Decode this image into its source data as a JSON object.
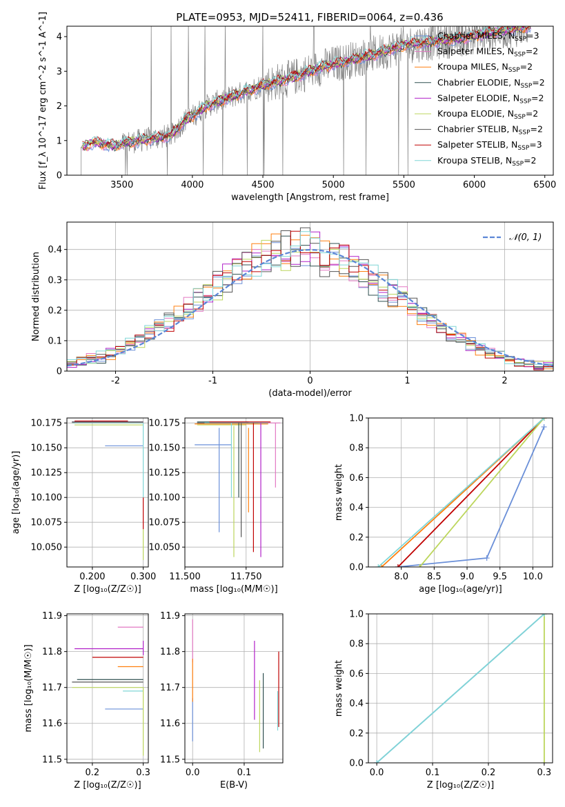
{
  "title": "PLATE=0953, MJD=52411, FIBERID=0064, z=0.436",
  "colors": {
    "Chabrier MILES": "#6a8fd8",
    "Salpeter MILES": "#e377c2",
    "Kroupa MILES": "#ff7f0e",
    "Chabrier ELODIE": "#2f4f4f",
    "Salpeter ELODIE": "#b01fc8",
    "Kroupa ELODIE": "#bcd65c",
    "Chabrier STELIB": "#555555",
    "Salpeter STELIB": "#c00000",
    "Kroupa STELIB": "#7fd6d6",
    "data": "#808080",
    "gaussian": "#5b86d6"
  },
  "chart_data": [
    {
      "id": "spectrum",
      "type": "line",
      "xlabel": "wavelength [Angstrom, rest frame]",
      "ylabel": "Flux [f_λ 10^-17 erg cm^-2 s^-1 A^-1]",
      "xlim": [
        3110,
        6560
      ],
      "ylim": [
        0,
        4.3
      ],
      "xticks": [
        3500,
        4000,
        4500,
        5000,
        5500,
        6000,
        6500
      ],
      "yticks": [
        0,
        1,
        2,
        3,
        4
      ],
      "grid": false,
      "legend_position": "top-right",
      "legend": [
        {
          "name": "Chabrier MILES",
          "sub": "N_SSP=3"
        },
        {
          "name": "Salpeter MILES",
          "sub": "N_SSP=2"
        },
        {
          "name": "Kroupa MILES",
          "sub": "N_SSP=2"
        },
        {
          "name": "Chabrier ELODIE",
          "sub": "N_SSP=2"
        },
        {
          "name": "Salpeter ELODIE",
          "sub": "N_SSP=2"
        },
        {
          "name": "Kroupa ELODIE",
          "sub": "N_SSP=2"
        },
        {
          "name": "Chabrier STELIB",
          "sub": "N_SSP=2"
        },
        {
          "name": "Salpeter STELIB",
          "sub": "N_SSP=3"
        },
        {
          "name": "Kroupa STELIB",
          "sub": "N_SSP=2"
        }
      ],
      "continuum_knots": [
        [
          3210,
          0.8
        ],
        [
          3300,
          0.95
        ],
        [
          3450,
          0.85
        ],
        [
          3550,
          0.95
        ],
        [
          3700,
          1.05
        ],
        [
          3850,
          1.15
        ],
        [
          3950,
          1.6
        ],
        [
          4000,
          1.7
        ],
        [
          4100,
          2.0
        ],
        [
          4300,
          2.3
        ],
        [
          4500,
          2.6
        ],
        [
          4700,
          2.8
        ],
        [
          4900,
          3.1
        ],
        [
          5100,
          3.3
        ],
        [
          5300,
          3.5
        ],
        [
          5500,
          3.75
        ],
        [
          5700,
          3.85
        ],
        [
          5900,
          3.95
        ],
        [
          6100,
          4.1
        ],
        [
          6400,
          4.3
        ]
      ]
    },
    {
      "id": "residual-histogram",
      "type": "bar",
      "xlabel": "(data-model)/error",
      "ylabel": "Normed distribution",
      "xlim": [
        -2.5,
        2.5
      ],
      "ylim": [
        0,
        0.49
      ],
      "xticks": [
        -2,
        -1,
        0,
        1,
        2
      ],
      "yticks": [
        0.0,
        0.1,
        0.2,
        0.3,
        0.4
      ],
      "grid": true,
      "legend_position": "top-right",
      "legend": [
        {
          "name": "𝒩(0, 1)"
        }
      ],
      "bin_width": 0.1,
      "bins_from": -2.5,
      "gaussian": {
        "mean": 0,
        "sigma": 1
      }
    },
    {
      "id": "age-vs-Z",
      "type": "scatter",
      "xlabel": "Z [log₁₀(Z/Z☉)]",
      "ylabel": "age  [log₁₀(age/yr)]",
      "xlim": [
        0.15,
        0.31
      ],
      "ylim": [
        10.03,
        10.18
      ],
      "xticks": [
        0.2,
        0.3
      ],
      "yticks": [
        10.05,
        10.075,
        10.1,
        10.125,
        10.15,
        10.175
      ],
      "grid": true,
      "hlines": [
        {
          "s": "Chabrier MILES",
          "y": 10.152,
          "x0": 0.225,
          "x1": 0.3
        },
        {
          "s": "Salpeter MILES",
          "y": 10.176,
          "x0": 0.16,
          "x1": 0.3
        },
        {
          "s": "Kroupa MILES",
          "y": 10.175,
          "x0": 0.16,
          "x1": 0.3
        },
        {
          "s": "Chabrier ELODIE",
          "y": 10.176,
          "x0": 0.16,
          "x1": 0.3
        },
        {
          "s": "Salpeter ELODIE",
          "y": 10.176,
          "x0": 0.16,
          "x1": 0.3
        },
        {
          "s": "Kroupa ELODIE",
          "y": 10.173,
          "x0": 0.165,
          "x1": 0.3
        },
        {
          "s": "Chabrier STELIB",
          "y": 10.176,
          "x0": 0.16,
          "x1": 0.3
        },
        {
          "s": "Salpeter STELIB",
          "y": 10.177,
          "x0": 0.165,
          "x1": 0.27
        },
        {
          "s": "Kroupa STELIB",
          "y": 10.175,
          "x0": 0.16,
          "x1": 0.3
        }
      ],
      "vlines": [
        {
          "s": "Salpeter STELIB",
          "x": 0.3,
          "y0": 10.068,
          "y1": 10.1
        },
        {
          "s": "Kroupa ELODIE",
          "x": 0.3,
          "y0": 10.037,
          "y1": 10.068
        },
        {
          "s": "Kroupa STELIB",
          "x": 0.3,
          "y0": 10.1,
          "y1": 10.175
        }
      ]
    },
    {
      "id": "age-vs-mass",
      "type": "scatter",
      "xlabel": "mass [log₁₀(M/M☉)]",
      "ylabel": "",
      "xlim": [
        11.5,
        11.9
      ],
      "ylim": [
        10.03,
        10.18
      ],
      "xticks": [
        11.5,
        11.75
      ],
      "yticks": [
        10.05,
        10.075,
        10.1,
        10.125,
        10.15,
        10.175
      ],
      "grid": true,
      "hlines": [
        {
          "s": "Chabrier MILES",
          "y": 10.153,
          "x0": 11.54,
          "x1": 11.69
        },
        {
          "s": "Salpeter MILES",
          "y": 10.175,
          "x0": 11.6,
          "x1": 11.89
        },
        {
          "s": "Kroupa MILES",
          "y": 10.174,
          "x0": 11.54,
          "x1": 11.84
        },
        {
          "s": "Chabrier ELODIE",
          "y": 10.176,
          "x0": 11.55,
          "x1": 11.76
        },
        {
          "s": "Salpeter ELODIE",
          "y": 10.175,
          "x0": 11.6,
          "x1": 11.84
        },
        {
          "s": "Kroupa ELODIE",
          "y": 10.173,
          "x0": 11.55,
          "x1": 11.75
        },
        {
          "s": "Chabrier STELIB",
          "y": 10.175,
          "x0": 11.55,
          "x1": 11.8
        },
        {
          "s": "Salpeter STELIB",
          "y": 10.176,
          "x0": 11.6,
          "x1": 11.85
        },
        {
          "s": "Kroupa STELIB",
          "y": 10.175,
          "x0": 11.58,
          "x1": 11.84
        }
      ],
      "vlines": [
        {
          "s": "Chabrier MILES",
          "x": 11.64,
          "y0": 10.065,
          "y1": 10.17
        },
        {
          "s": "Salpeter MILES",
          "x": 11.87,
          "y0": 10.11,
          "y1": 10.175
        },
        {
          "s": "Kroupa MILES",
          "x": 11.76,
          "y0": 10.085,
          "y1": 10.17
        },
        {
          "s": "Chabrier ELODIE",
          "x": 11.72,
          "y0": 10.1,
          "y1": 10.175
        },
        {
          "s": "Salpeter ELODIE",
          "x": 11.81,
          "y0": 10.04,
          "y1": 10.175
        },
        {
          "s": "Kroupa ELODIE",
          "x": 11.7,
          "y0": 10.04,
          "y1": 10.172
        },
        {
          "s": "Chabrier STELIB",
          "x": 11.73,
          "y0": 10.06,
          "y1": 10.175
        },
        {
          "s": "Salpeter STELIB",
          "x": 11.78,
          "y0": 10.045,
          "y1": 10.175
        },
        {
          "s": "Kroupa STELIB",
          "x": 11.69,
          "y0": 10.1,
          "y1": 10.175
        }
      ]
    },
    {
      "id": "mass-weight-vs-age",
      "type": "line",
      "xlabel": "age  [log₁₀(age/yr)]",
      "ylabel": "mass weight",
      "xlim": [
        7.5,
        10.3
      ],
      "ylim": [
        0,
        1
      ],
      "xticks": [
        8.0,
        8.5,
        9.0,
        9.5,
        10.0
      ],
      "yticks": [
        0.0,
        0.2,
        0.4,
        0.6,
        0.8,
        1.0
      ],
      "grid": true,
      "series": [
        {
          "s": "Chabrier MILES",
          "x": [
            7.95,
            9.3,
            10.17
          ],
          "y": [
            0.0,
            0.06,
            0.94
          ]
        },
        {
          "s": "Salpeter STELIB",
          "x": [
            7.95,
            10.17
          ],
          "y": [
            0.0,
            1.0
          ]
        },
        {
          "s": "Kroupa ELODIE",
          "x": [
            8.28,
            10.17
          ],
          "y": [
            0.0,
            1.0
          ]
        },
        {
          "s": "Kroupa MILES",
          "x": [
            7.7,
            10.17
          ],
          "y": [
            0.0,
            1.0
          ]
        },
        {
          "s": "Kroupa STELIB",
          "x": [
            7.65,
            10.17
          ],
          "y": [
            0.0,
            1.0
          ]
        }
      ]
    },
    {
      "id": "mass-vs-Z",
      "type": "scatter",
      "xlabel": "Z [log₁₀(Z/Z☉)]",
      "ylabel": "mass [log₁₀(M/M☉)]",
      "xlim": [
        0.15,
        0.31
      ],
      "ylim": [
        11.49,
        11.905
      ],
      "xticks": [
        0.2,
        0.3
      ],
      "yticks": [
        11.5,
        11.6,
        11.7,
        11.8,
        11.9
      ],
      "grid": true,
      "hlines": [
        {
          "s": "Chabrier MILES",
          "y": 11.64,
          "x0": 0.225,
          "x1": 0.3
        },
        {
          "s": "Salpeter MILES",
          "y": 11.868,
          "x0": 0.25,
          "x1": 0.3
        },
        {
          "s": "Kroupa MILES",
          "y": 11.758,
          "x0": 0.25,
          "x1": 0.3
        },
        {
          "s": "Chabrier ELODIE",
          "y": 11.722,
          "x0": 0.17,
          "x1": 0.3
        },
        {
          "s": "Salpeter ELODIE",
          "y": 11.808,
          "x0": 0.165,
          "x1": 0.3
        },
        {
          "s": "Kroupa ELODIE",
          "y": 11.7,
          "x0": 0.16,
          "x1": 0.3
        },
        {
          "s": "Chabrier STELIB",
          "y": 11.715,
          "x0": 0.16,
          "x1": 0.3
        },
        {
          "s": "Salpeter STELIB",
          "y": 11.784,
          "x0": 0.2,
          "x1": 0.3
        },
        {
          "s": "Kroupa STELIB",
          "y": 11.69,
          "x0": 0.26,
          "x1": 0.3
        }
      ],
      "vlines": [
        {
          "s": "Salpeter ELODIE",
          "x": 0.3,
          "y0": 11.79,
          "y1": 11.83
        },
        {
          "s": "Kroupa ELODIE",
          "x": 0.3,
          "y0": 11.51,
          "y1": 11.7
        }
      ]
    },
    {
      "id": "mass-vs-EBV",
      "type": "scatter",
      "xlabel": "E(B-V)",
      "ylabel": "",
      "xlim": [
        -0.015,
        0.175
      ],
      "ylim": [
        11.49,
        11.905
      ],
      "xticks": [
        0.0,
        0.1
      ],
      "yticks": [
        11.5,
        11.6,
        11.7,
        11.8,
        11.9
      ],
      "grid": true,
      "vlines": [
        {
          "s": "Chabrier MILES",
          "x": 0.0,
          "y0": 11.55,
          "y1": 11.67
        },
        {
          "s": "Salpeter MILES",
          "x": 0.0,
          "y0": 11.77,
          "y1": 11.89
        },
        {
          "s": "Kroupa MILES",
          "x": 0.0,
          "y0": 11.66,
          "y1": 11.78
        },
        {
          "s": "Salpeter ELODIE",
          "x": 0.12,
          "y0": 11.61,
          "y1": 11.83
        },
        {
          "s": "Kroupa ELODIE",
          "x": 0.13,
          "y0": 11.52,
          "y1": 11.72
        },
        {
          "s": "Chabrier ELODIE",
          "x": 0.137,
          "y0": 11.53,
          "y1": 11.74
        },
        {
          "s": "Salpeter STELIB",
          "x": 0.167,
          "y0": 11.59,
          "y1": 11.8
        },
        {
          "s": "Kroupa STELIB",
          "x": 0.165,
          "y0": 11.58,
          "y1": 11.69
        }
      ]
    },
    {
      "id": "mass-weight-vs-Z",
      "type": "line",
      "xlabel": "Z [log₁₀(Z/Z☉)]",
      "ylabel": "mass weight",
      "xlim": [
        -0.015,
        0.315
      ],
      "ylim": [
        0,
        1
      ],
      "xticks": [
        0.0,
        0.1,
        0.2,
        0.3
      ],
      "yticks": [
        0.0,
        0.2,
        0.4,
        0.6,
        0.8,
        1.0
      ],
      "grid": true,
      "series": [
        {
          "s": "Chabrier MILES",
          "x": [
            0.0,
            0.3
          ],
          "y": [
            0.0,
            1.0
          ]
        },
        {
          "s": "Kroupa ELODIE",
          "x": [
            0.3,
            0.3
          ],
          "y": [
            0.0,
            1.0
          ]
        },
        {
          "s": "Kroupa STELIB",
          "x": [
            0.0,
            0.3
          ],
          "y": [
            0.0,
            1.0
          ]
        }
      ]
    }
  ]
}
